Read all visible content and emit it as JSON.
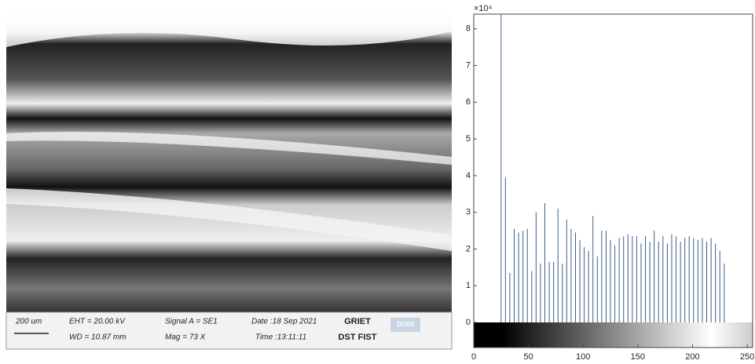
{
  "sem_image": {
    "scale_bar": "200 um",
    "eht": "EHT = 20.00 kV",
    "wd": "WD = 10.87 mm",
    "signal": "Signal A = SE1",
    "mag": "Mag =    73 X",
    "date": "Date :18 Sep 2021",
    "time": "Time :13:11:11",
    "org1": "GRIET",
    "org2": "DST FIST",
    "brand": "ZEISS"
  },
  "chart_data": {
    "type": "stem",
    "y_multiplier": "×10⁴",
    "color": "#3a5f8a",
    "x": [
      25,
      29,
      33,
      37,
      41,
      45,
      49,
      53,
      57,
      61,
      65,
      69,
      73,
      77,
      81,
      85,
      89,
      93,
      97,
      101,
      105,
      109,
      113,
      117,
      121,
      125,
      129,
      133,
      137,
      141,
      145,
      149,
      153,
      157,
      161,
      165,
      169,
      173,
      177,
      181,
      185,
      189,
      193,
      197,
      201,
      205,
      209,
      213,
      217,
      221,
      225,
      229
    ],
    "values": [
      8.4,
      3.95,
      1.35,
      2.55,
      2.45,
      2.5,
      2.55,
      1.4,
      3.0,
      1.6,
      3.25,
      1.65,
      1.65,
      3.1,
      1.6,
      2.8,
      2.55,
      2.45,
      2.25,
      2.05,
      1.95,
      2.9,
      1.8,
      2.5,
      2.5,
      2.25,
      2.1,
      2.3,
      2.35,
      2.4,
      2.35,
      2.35,
      2.15,
      2.35,
      2.2,
      2.5,
      2.2,
      2.35,
      2.15,
      2.4,
      2.35,
      2.2,
      2.3,
      2.35,
      2.3,
      2.25,
      2.3,
      2.2,
      2.3,
      2.15,
      1.95,
      1.6
    ],
    "xlim": [
      0,
      255
    ],
    "ylim": [
      0,
      8.4
    ],
    "xticks": [
      0,
      50,
      100,
      150,
      200,
      250
    ],
    "yticks": [
      0,
      1,
      2,
      3,
      4,
      5,
      6,
      7,
      8
    ]
  }
}
